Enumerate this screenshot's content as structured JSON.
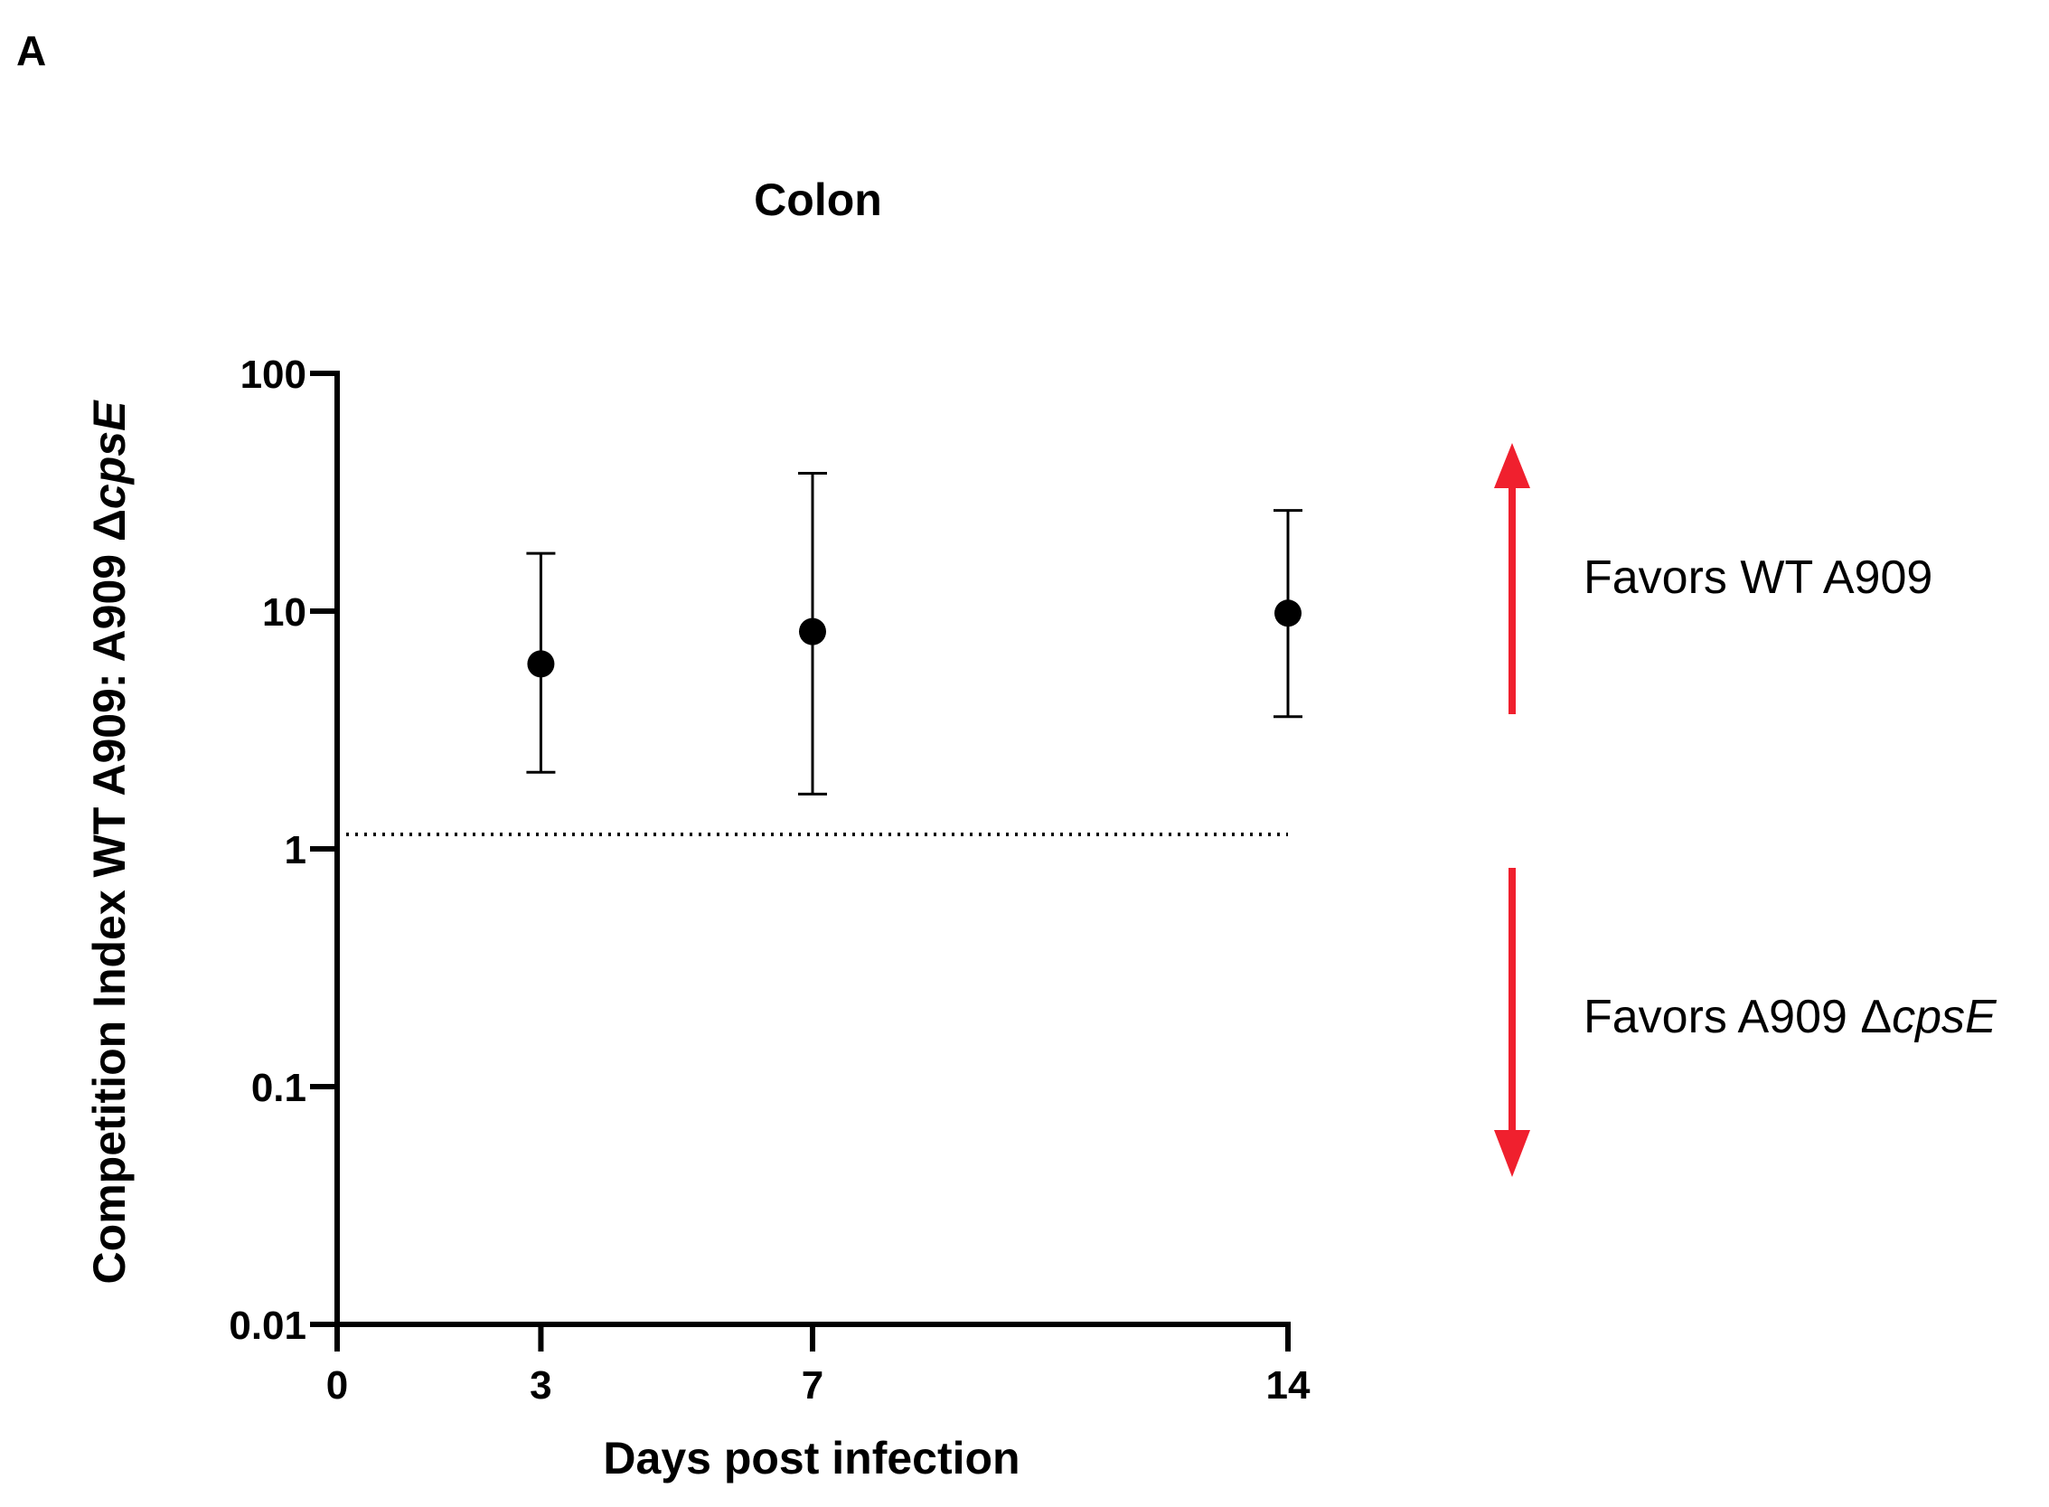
{
  "panel_label": "A",
  "chart_data": {
    "type": "scatter",
    "title": "Colon",
    "xlabel": "Days post infection",
    "ylabel": {
      "prefix": "Competition Index WT A909: A909 Δ",
      "italic": "cpsE"
    },
    "y_scale": "log",
    "xlim": [
      0,
      14
    ],
    "ylim": [
      0.01,
      100
    ],
    "x_ticks": [
      0,
      3,
      7,
      14
    ],
    "y_ticks": [
      {
        "value": 100,
        "label": "100"
      },
      {
        "value": 10,
        "label": "10"
      },
      {
        "value": 1,
        "label": "1"
      },
      {
        "value": 0.1,
        "label": "0.1"
      },
      {
        "value": 0.01,
        "label": "0.01"
      }
    ],
    "reference_line": {
      "y": 1.15,
      "style": "dotted",
      "x_range": [
        0,
        14
      ]
    },
    "grid": false,
    "points": [
      {
        "x": 3,
        "y": 6.0,
        "err_low": 2.1,
        "err_high": 17.5
      },
      {
        "x": 7,
        "y": 8.2,
        "err_low": 1.7,
        "err_high": 38.0
      },
      {
        "x": 14,
        "y": 9.8,
        "err_low": 3.6,
        "err_high": 26.5
      }
    ],
    "annotations": {
      "up": {
        "text": "Favors WT A909",
        "color": "#f0202e"
      },
      "down": {
        "prefix": "Favors A909 Δ",
        "italic": "cpsE",
        "color": "#f0202e"
      }
    }
  }
}
